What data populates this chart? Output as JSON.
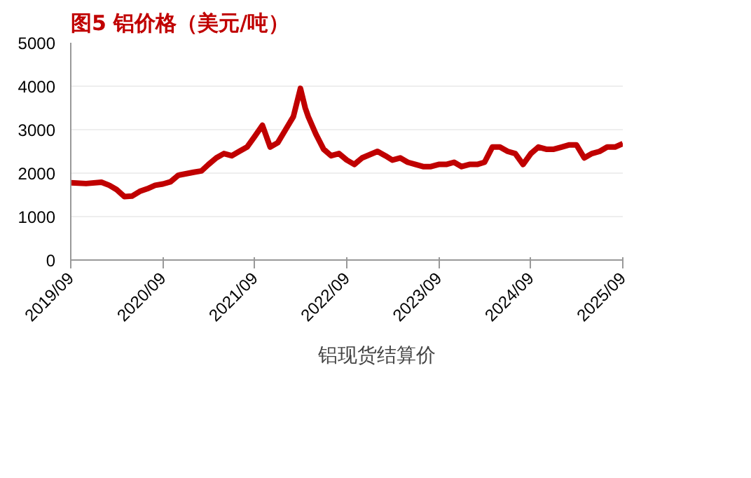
{
  "chart_data": {
    "type": "line",
    "title": "图5  铝价格（美元/吨）",
    "x": [
      "2019-09",
      "2019-11",
      "2020-01",
      "2020-02",
      "2020-03",
      "2020-04",
      "2020-05",
      "2020-06",
      "2020-07",
      "2020-08",
      "2020-09",
      "2020-10",
      "2020-11",
      "2021-01",
      "2021-02",
      "2021-03",
      "2021-04",
      "2021-05",
      "2021-06",
      "2021-07",
      "2021-08",
      "2021-09",
      "2021-10",
      "2021-11",
      "2021-12",
      "2022-01",
      "2022-02",
      "2022-03",
      "2022-03-20",
      "2022-04",
      "2022-05",
      "2022-06",
      "2022-07",
      "2022-08",
      "2022-09",
      "2022-10",
      "2022-11",
      "2023-01",
      "2023-02",
      "2023-03",
      "2023-04",
      "2023-05",
      "2023-06",
      "2023-07",
      "2023-08",
      "2023-09",
      "2023-10",
      "2023-11",
      "2023-12",
      "2024-01",
      "2024-02",
      "2024-03",
      "2024-04",
      "2024-05",
      "2024-06",
      "2024-07",
      "2024-08",
      "2024-09",
      "2024-10",
      "2024-11",
      "2024-12",
      "2025-01",
      "2025-02",
      "2025-03",
      "2025-04",
      "2025-05",
      "2025-06",
      "2025-07",
      "2025-08",
      "2025-09"
    ],
    "series": [
      {
        "name": "铝现货结算价",
        "color": "#c00000",
        "values": [
          1780,
          1760,
          1790,
          1720,
          1620,
          1460,
          1470,
          1580,
          1640,
          1720,
          1750,
          1800,
          1950,
          2020,
          2050,
          2200,
          2350,
          2450,
          2400,
          2500,
          2600,
          2850,
          3100,
          2600,
          2700,
          3000,
          3300,
          3950,
          3500,
          3300,
          2900,
          2550,
          2400,
          2450,
          2300,
          2200,
          2350,
          2500,
          2400,
          2300,
          2350,
          2250,
          2200,
          2150,
          2150,
          2200,
          2200,
          2250,
          2150,
          2200,
          2200,
          2250,
          2600,
          2600,
          2500,
          2450,
          2200,
          2450,
          2600,
          2550,
          2550,
          2600,
          2650,
          2650,
          2350,
          2450,
          2500,
          2600,
          2600,
          2680
        ]
      }
    ],
    "ylim": [
      0,
      5000
    ],
    "yticks": [
      0,
      1000,
      2000,
      3000,
      4000,
      5000
    ],
    "xlim": [
      "2019-09",
      "2025-09"
    ],
    "xticks": [
      {
        "value": "2019-09",
        "label": "2019/09"
      },
      {
        "value": "2020-09",
        "label": "2020/09"
      },
      {
        "value": "2021-09",
        "label": "2021/09"
      },
      {
        "value": "2022-09",
        "label": "2022/09"
      },
      {
        "value": "2023-09",
        "label": "2023/09"
      },
      {
        "value": "2024-09",
        "label": "2024/09"
      },
      {
        "value": "2025-09",
        "label": "2025/09"
      }
    ],
    "grid": "y",
    "legend": "bottom",
    "marker": "none",
    "line_style": "solid"
  }
}
